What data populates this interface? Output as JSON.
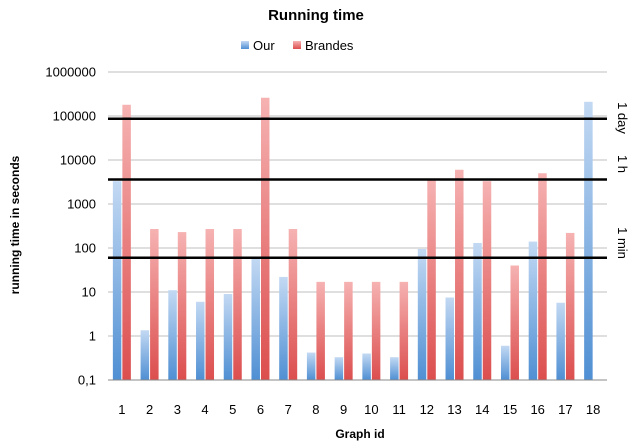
{
  "chart_data": {
    "type": "bar",
    "title": "Running time",
    "xlabel": "Graph id",
    "ylabel": "running time in seconds",
    "yscale": "log",
    "ylim": [
      0.1,
      1000000
    ],
    "y_tick_labels": [
      "0,1",
      "1",
      "10",
      "100",
      "1000",
      "10000",
      "100000",
      "1000000"
    ],
    "grid": "horizontal",
    "legend_position": "top",
    "categories": [
      "1",
      "2",
      "3",
      "4",
      "5",
      "6",
      "7",
      "8",
      "9",
      "10",
      "11",
      "12",
      "13",
      "14",
      "15",
      "16",
      "17",
      "18"
    ],
    "series": [
      {
        "name": "Our",
        "color": "#5b9bd5",
        "values": [
          3300,
          1.35,
          11,
          6,
          9,
          60,
          22,
          0.42,
          0.33,
          0.4,
          0.33,
          95,
          7.5,
          130,
          0.6,
          140,
          5.7,
          210000
        ]
      },
      {
        "name": "Brandes",
        "color": "#e05a5a",
        "values": [
          180000,
          270,
          230,
          270,
          270,
          260000,
          270,
          17,
          17,
          17,
          17,
          3700,
          6000,
          3300,
          40,
          5000,
          220,
          null
        ]
      }
    ],
    "reference_lines": [
      {
        "label": "1 day",
        "value": 86400
      },
      {
        "label": "1 h",
        "value": 3600
      },
      {
        "label": "1 min",
        "value": 60
      }
    ]
  }
}
